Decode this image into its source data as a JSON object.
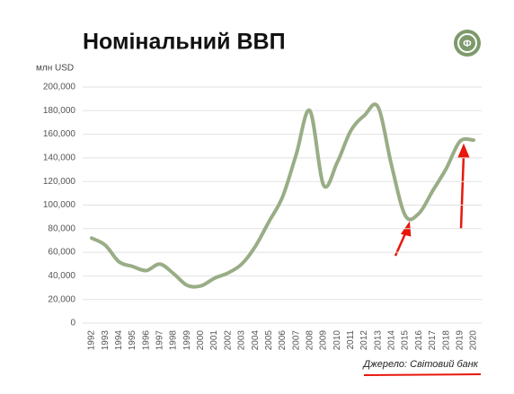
{
  "chart_data": {
    "type": "line",
    "title": "Номінальний ВВП",
    "y_label": "млн USD",
    "source": "Джерело: Світовий банк",
    "categories": [
      "1992",
      "1993",
      "1994",
      "1995",
      "1996",
      "1997",
      "1998",
      "1999",
      "2000",
      "2001",
      "2002",
      "2003",
      "2004",
      "2005",
      "2006",
      "2007",
      "2008",
      "2009",
      "2010",
      "2011",
      "2012",
      "2013",
      "2014",
      "2015",
      "2016",
      "2017",
      "2018",
      "2019",
      "2020"
    ],
    "series": [
      {
        "name": "Номінальний ВВП",
        "color": "#99ad86",
        "values": [
          72000,
          66000,
          52000,
          48000,
          44500,
          50000,
          42000,
          32000,
          31500,
          38000,
          42500,
          50000,
          65000,
          86000,
          107000,
          143000,
          180000,
          117000,
          136000,
          163000,
          176000,
          183000,
          133000,
          91000,
          93000,
          112000,
          131000,
          154000,
          155000
        ]
      }
    ],
    "ylim": [
      0,
      200000
    ],
    "yticks": [
      0,
      {
        "value": 20000,
        "label": "20,000"
      },
      {
        "value": 40000,
        "label": "40,000"
      },
      {
        "value": 60000,
        "label": "60,000"
      },
      {
        "value": 80000,
        "label": "80,000"
      },
      {
        "value": 100000,
        "label": "100,000"
      },
      {
        "value": 120000,
        "label": "120,000"
      },
      {
        "value": 140000,
        "label": "140,000"
      },
      {
        "value": 160000,
        "label": "160,000"
      },
      {
        "value": 180000,
        "label": "180,000"
      },
      {
        "value": 200000,
        "label": "200,000"
      }
    ],
    "grid": true
  }
}
